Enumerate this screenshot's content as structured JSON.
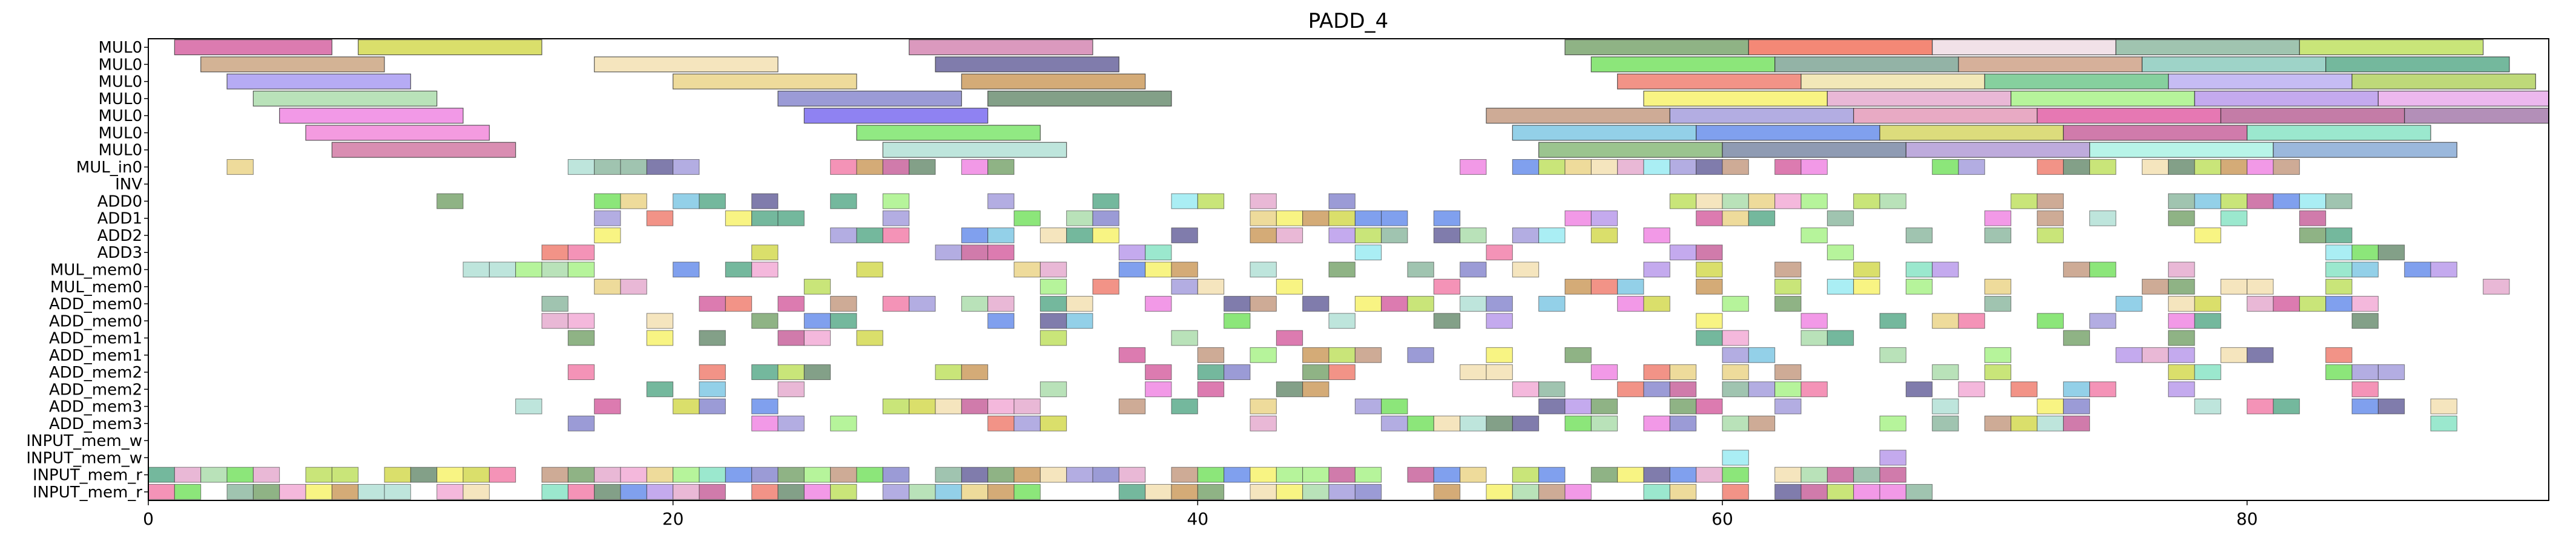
{
  "chart_data": {
    "type": "gantt",
    "title": "PADD_4",
    "xlim": [
      0,
      91.5
    ],
    "xticks": [
      0,
      20,
      40,
      60,
      80
    ],
    "rows": [
      "MUL0",
      "MUL0",
      "MUL0",
      "MUL0",
      "MUL0",
      "MUL0",
      "MUL0",
      "MUL_in0",
      "INV",
      "ADD0",
      "ADD1",
      "ADD2",
      "ADD3",
      "MUL_mem0",
      "MUL_mem0",
      "ADD_mem0",
      "ADD_mem0",
      "ADD_mem1",
      "ADD_mem1",
      "ADD_mem2",
      "ADD_mem2",
      "ADD_mem3",
      "ADD_mem3",
      "INPUT_mem_w",
      "INPUT_mem_w",
      "INPUT_mem_r",
      "INPUT_mem_r"
    ],
    "long_tasks": [
      {
        "row": 0,
        "bars": [
          [
            1,
            7,
            "#d04f95"
          ],
          [
            8,
            15,
            "#cdd43a"
          ],
          [
            29,
            36,
            "#cf77a8"
          ],
          [
            54,
            61,
            "#6a9a5c"
          ],
          [
            61,
            68,
            "#f06048"
          ],
          [
            68,
            75,
            "#ecd7e0"
          ],
          [
            75,
            82,
            "#80b095"
          ],
          [
            82,
            89,
            "#b7dc4c"
          ]
        ]
      },
      {
        "row": 1,
        "bars": [
          [
            2,
            9,
            "#c49a72"
          ],
          [
            17,
            24,
            "#f2dca8"
          ],
          [
            30,
            37,
            "#555090"
          ],
          [
            55,
            62,
            "#66dd4e"
          ],
          [
            62,
            69,
            "#6f9a88"
          ],
          [
            69,
            76,
            "#c89678"
          ],
          [
            76,
            83,
            "#7ec4b5"
          ],
          [
            83,
            90,
            "#45a07c"
          ]
        ]
      },
      {
        "row": 2,
        "bars": [
          [
            3,
            10,
            "#9d8ff0"
          ],
          [
            20,
            27,
            "#e8cf7a"
          ],
          [
            31,
            38,
            "#c68f4a"
          ],
          [
            56,
            63,
            "#ee6f5f"
          ],
          [
            63,
            70,
            "#ede0a0"
          ],
          [
            70,
            77,
            "#5ec07d"
          ],
          [
            77,
            84,
            "#b3a6f0"
          ],
          [
            84,
            91,
            "#a8cc4c"
          ]
        ]
      },
      {
        "row": 3,
        "bars": [
          [
            4,
            11,
            "#a2d8a2"
          ],
          [
            24,
            31,
            "#7a7ac8"
          ],
          [
            32,
            39,
            "#5a8060"
          ],
          [
            57,
            64,
            "#f5f05a"
          ],
          [
            64,
            71,
            "#e1a0c8"
          ],
          [
            71,
            78,
            "#9ef07a"
          ],
          [
            78,
            85,
            "#b08ee8"
          ],
          [
            85,
            92,
            "#e6a0e8"
          ]
        ]
      },
      {
        "row": 4,
        "bars": [
          [
            5,
            12,
            "#ee77df"
          ],
          [
            25,
            32,
            "#6a58ee"
          ],
          [
            51,
            58,
            "#be8f73"
          ],
          [
            58,
            65,
            "#9a92d8"
          ],
          [
            65,
            72,
            "#e08eb0"
          ],
          [
            72,
            79,
            "#dd4b9a"
          ],
          [
            79,
            86,
            "#b0508a"
          ],
          [
            86,
            93,
            "#9a6aa0"
          ]
        ]
      },
      {
        "row": 5,
        "bars": [
          [
            6,
            13,
            "#f07ad5"
          ],
          [
            27,
            34,
            "#6ce15a"
          ],
          [
            52,
            59,
            "#6fc0e0"
          ],
          [
            59,
            66,
            "#5580e8"
          ],
          [
            66,
            73,
            "#d0d050"
          ],
          [
            73,
            80,
            "#c04f8f"
          ],
          [
            80,
            87,
            "#7ae0be"
          ]
        ]
      },
      {
        "row": 6,
        "bars": [
          [
            7,
            14,
            "#cc6898"
          ],
          [
            28,
            35,
            "#a8dcd0"
          ],
          [
            53,
            60,
            "#7ab06a"
          ],
          [
            60,
            67,
            "#6a7a9a"
          ],
          [
            67,
            74,
            "#a88fd0"
          ],
          [
            74,
            81,
            "#a0f0e0"
          ],
          [
            81,
            88,
            "#7aa0d0"
          ]
        ]
      }
    ]
  }
}
